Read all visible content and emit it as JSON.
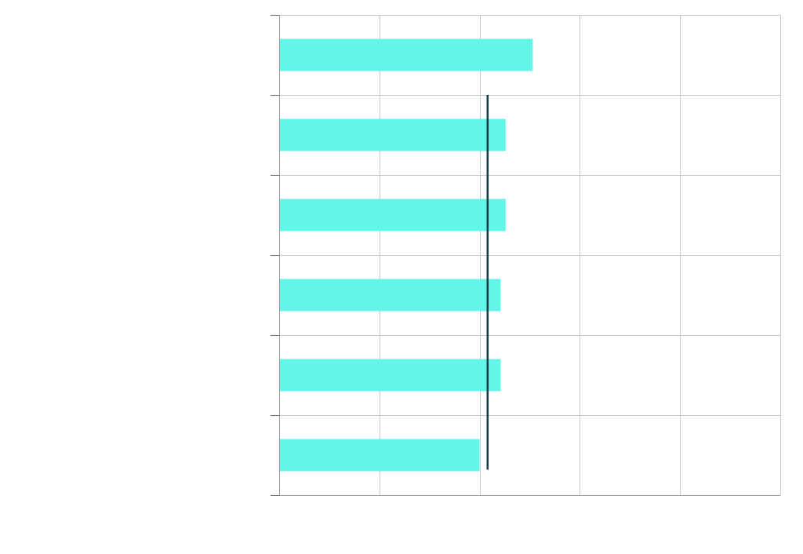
{
  "chart_data": {
    "type": "bar",
    "orientation": "horizontal",
    "title": "",
    "xlabel": "",
    "ylabel": "",
    "xlim": [
      0,
      5
    ],
    "x_ticks": [
      0,
      1,
      2,
      3,
      4,
      5
    ],
    "categories": [
      "",
      "",
      "",
      "",
      "",
      ""
    ],
    "values": [
      2.53,
      2.26,
      2.26,
      2.21,
      2.21,
      2.0
    ],
    "reference_line": {
      "value": 2.08,
      "span_categories": [
        1,
        5
      ]
    },
    "grid": true,
    "legend": "none",
    "colors": {
      "bar": "#63f5e8",
      "reference_line": "#0f3a44",
      "grid": "#c8c8c8"
    }
  }
}
